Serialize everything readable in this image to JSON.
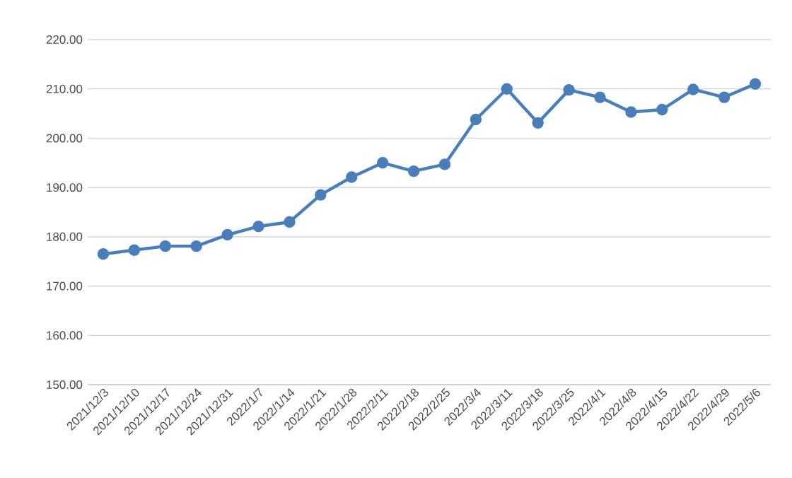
{
  "chart_data": {
    "type": "line",
    "categories": [
      "2021/12/3",
      "2021/12/10",
      "2021/12/17",
      "2021/12/24",
      "2021/12/31",
      "2022/1/7",
      "2022/1/14",
      "2022/1/21",
      "2022/1/28",
      "2022/2/11",
      "2022/2/18",
      "2022/2/25",
      "2022/3/4",
      "2022/3/11",
      "2022/3/18",
      "2022/3/25",
      "2022/4/1",
      "2022/4/8",
      "2022/4/15",
      "2022/4/22",
      "2022/4/29",
      "2022/5/6"
    ],
    "series": [
      {
        "color": "#4a7ebb",
        "values": [
          176.5,
          177.3,
          178.1,
          178.1,
          180.4,
          182.1,
          183.0,
          188.5,
          192.1,
          195.0,
          193.3,
          194.7,
          203.8,
          210.0,
          203.1,
          209.8,
          208.3,
          205.3,
          205.8,
          209.9,
          208.3,
          211.0
        ]
      }
    ],
    "ylim": [
      150,
      220
    ],
    "yticks": [
      {
        "value": 150,
        "label": "150.00"
      },
      {
        "value": 160,
        "label": "160.00"
      },
      {
        "value": 170,
        "label": "170.00"
      },
      {
        "value": 180,
        "label": "180.00"
      },
      {
        "value": 190,
        "label": "190.00"
      },
      {
        "value": 200,
        "label": "200.00"
      },
      {
        "value": 210,
        "label": "210.00"
      },
      {
        "value": 220,
        "label": "220.00"
      }
    ],
    "grid": "y",
    "marker": "circle",
    "line_style": "solid"
  }
}
